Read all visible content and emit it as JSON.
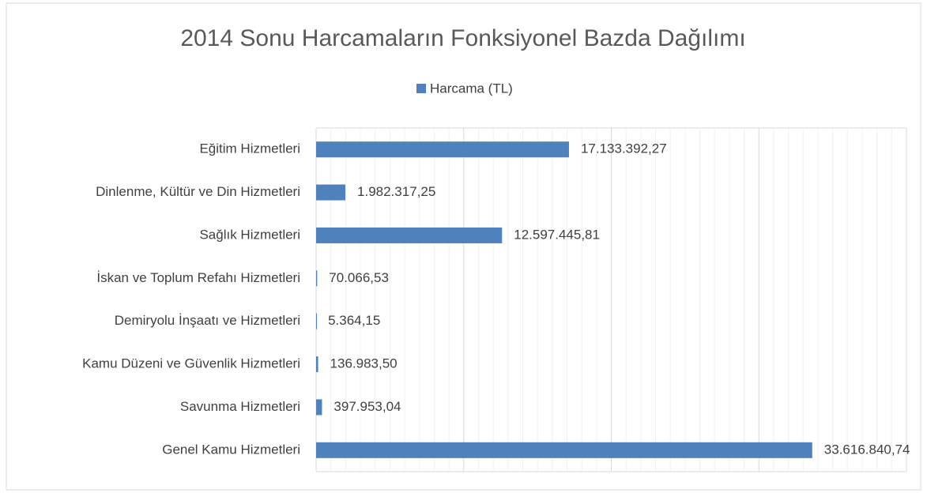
{
  "chart_data": {
    "type": "bar",
    "orientation": "horizontal",
    "title": "2014 Sonu Harcamaların Fonksiyonel Bazda Dağılımı",
    "categories": [
      "Eğitim Hizmetleri",
      "Dinlenme, Kültür ve Din Hizmetleri",
      "Sağlık Hizmetleri",
      "İskan ve Toplum Refahı Hizmetleri",
      "Demiryolu İnşaatı ve Hizmetleri",
      "Kamu Düzeni ve Güvenlik Hizmetleri",
      "Savunma Hizmetleri",
      "Genel Kamu Hizmetleri"
    ],
    "series": [
      {
        "name": "Harcama (TL)",
        "color": "#4f81bd",
        "values": [
          17133392.27,
          1982317.25,
          12597445.81,
          70066.53,
          5364.15,
          136983.5,
          397953.04,
          33616840.74
        ],
        "value_labels": [
          "17.133.392,27",
          "1.982.317,25",
          "12.597.445,81",
          "70.066,53",
          "5.364,15",
          "136.983,50",
          "397.953,04",
          "33.616.840,74"
        ]
      }
    ],
    "xlim": [
      0,
      40000000
    ],
    "xticks": [
      0,
      10000000,
      20000000,
      30000000,
      40000000
    ],
    "grid": true,
    "legend": "top"
  }
}
